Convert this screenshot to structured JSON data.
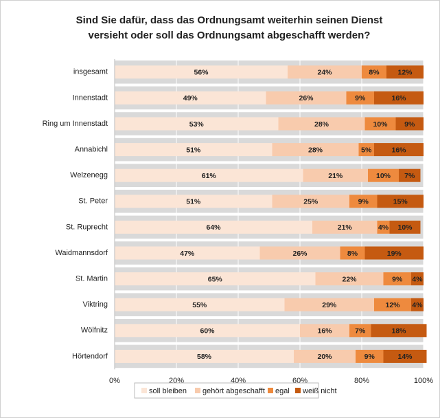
{
  "chart_data": {
    "type": "stacked_bar_horizontal",
    "title": [
      "Sind Sie dafür, dass das Ordnungsamt weiterhin seinen Dienst",
      "versieht oder soll das Ordnungsamt abgeschafft werden?"
    ],
    "categories": [
      "insgesamt",
      "Innenstadt",
      "Ring um Innenstadt",
      "Annabichl",
      "Welzenegg",
      "St. Peter",
      "St. Ruprecht",
      "Waidmannsdorf",
      "St. Martin",
      "Viktring",
      "Wölfnitz",
      "Hörtendorf"
    ],
    "series": [
      {
        "name": "soll bleiben",
        "color": "#fbe5d6",
        "values": [
          56,
          49,
          53,
          51,
          61,
          51,
          64,
          47,
          65,
          55,
          60,
          58
        ],
        "value_labels": [
          "56%",
          "49%",
          "53%",
          "51%",
          "61%",
          "51%",
          "64%",
          "47%",
          "65%",
          "55%",
          "60%",
          "58%"
        ]
      },
      {
        "name": "gehört abgeschafft",
        "color": "#f8cbad",
        "values": [
          24,
          26,
          28,
          28,
          21,
          25,
          21,
          26,
          22,
          29,
          16,
          20
        ],
        "value_labels": [
          "24%",
          "26%",
          "28%",
          "28%",
          "21%",
          "25%",
          "21%",
          "26%",
          "22%",
          "29%",
          "16%",
          "20%"
        ]
      },
      {
        "name": "egal",
        "color": "#ee8a3e",
        "values": [
          8,
          9,
          10,
          5,
          10,
          9,
          4,
          8,
          9,
          12,
          7,
          9
        ],
        "value_labels": [
          "8%",
          "9%",
          "10%",
          "5%",
          "10%",
          "9%",
          "4%",
          "8%",
          "9%",
          "12%",
          "7%",
          "9%"
        ]
      },
      {
        "name": "weiß nicht",
        "color": "#c55a11",
        "values": [
          12,
          16,
          9,
          16,
          7,
          15,
          10,
          19,
          4,
          4,
          18,
          14
        ],
        "value_labels": [
          "12%",
          "16%",
          "9%",
          "16%",
          "7%",
          "15%",
          "10%",
          "19%",
          "4%",
          "4%",
          "18%",
          "14%"
        ]
      }
    ],
    "xlim": [
      0,
      100
    ],
    "xticks": [
      {
        "value": 0,
        "label": "0%"
      },
      {
        "value": 20,
        "label": "20%"
      },
      {
        "value": 40,
        "label": "40%"
      },
      {
        "value": 60,
        "label": "60%"
      },
      {
        "value": 80,
        "label": "80%"
      },
      {
        "value": 100,
        "label": "100%"
      }
    ],
    "legend": "bottom"
  }
}
